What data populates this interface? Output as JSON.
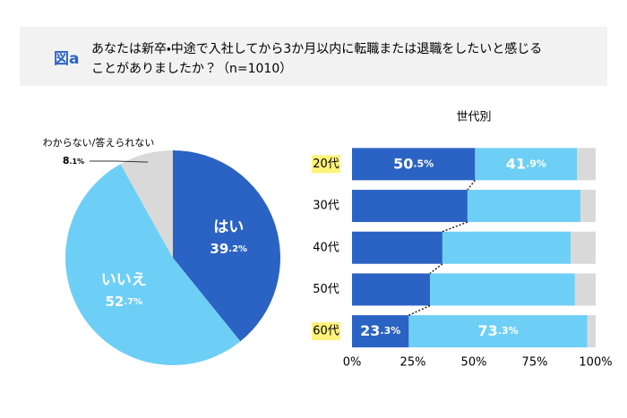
{
  "header": {
    "label": "図a",
    "title": [
      "あなたは新卒・中途で入社してから3か月以内に転職または退職をしたいと感じる",
      "ことがありましたか？（n=1010）"
    ]
  },
  "chart_data": [
    {
      "type": "pie",
      "categories": [
        "はい",
        "いいえ",
        "わからない/答えられない"
      ],
      "values": [
        39.2,
        52.7,
        8.1
      ],
      "value_labels": [
        "39.2%",
        "52.7%",
        "8.1%"
      ],
      "colors": [
        "#2b63c4",
        "#6ecff6",
        "#d9d9d9"
      ]
    },
    {
      "type": "stacked-bar",
      "title": "世代別",
      "categories": [
        "20代",
        "30代",
        "40代",
        "50代",
        "60代"
      ],
      "highlight": [
        0,
        4
      ],
      "series": [
        {
          "color": "#2b63c4",
          "values": [
            50.5,
            47.4,
            37.1,
            32.0,
            23.3
          ],
          "value_labels": [
            "50.5%",
            null,
            null,
            null,
            "23.3%"
          ]
        },
        {
          "color": "#6ecff6",
          "values": [
            41.9,
            46.4,
            52.6,
            59.5,
            73.3
          ],
          "value_labels": [
            "41.9%",
            null,
            null,
            null,
            "73.3%"
          ]
        },
        {
          "color": "#d9d9d9",
          "values": [
            7.6,
            6.2,
            10.3,
            8.5,
            3.4
          ]
        }
      ],
      "xlim": [
        0,
        100
      ],
      "xticks": [
        {
          "value": 0,
          "label": "0%"
        },
        {
          "value": 25,
          "label": "25%"
        },
        {
          "value": 50,
          "label": "50%"
        },
        {
          "value": 75,
          "label": "75%"
        },
        {
          "value": 100,
          "label": "100%"
        }
      ]
    }
  ]
}
